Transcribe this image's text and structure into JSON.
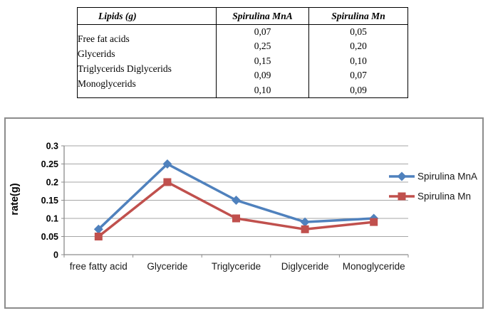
{
  "table": {
    "headers": [
      "Lipids (g)",
      "Spirulina MnA",
      "Spirulina Mn"
    ],
    "lipid_lines": [
      "Free fat acids",
      "Glycerids",
      "Triglycerids Diglycerids",
      "Monoglycerids"
    ],
    "spirulina_mna_values": [
      "0,07",
      "0,25",
      "0,15",
      "0,09",
      "0,10"
    ],
    "spirulina_mn_values": [
      "0,05",
      "0,20",
      "0,10",
      "0,07",
      "0,09"
    ]
  },
  "chart_data": {
    "type": "line",
    "categories": [
      "free fatty acid",
      "Glyceride",
      "Triglyceride",
      "Diglyceride",
      "Monoglyceride"
    ],
    "series": [
      {
        "name": "Spirulina MnA",
        "values": [
          0.07,
          0.25,
          0.15,
          0.09,
          0.1
        ],
        "color": "#4F81BD",
        "marker": "diamond"
      },
      {
        "name": "Spirulina Mn",
        "values": [
          0.05,
          0.2,
          0.1,
          0.07,
          0.09
        ],
        "color": "#C0504D",
        "marker": "square"
      }
    ],
    "title": "",
    "xlabel": "",
    "ylabel": "rate(g)",
    "ylim": [
      0,
      0.3
    ],
    "yticks": [
      0,
      0.05,
      0.1,
      0.15,
      0.2,
      0.25,
      0.3
    ],
    "ytick_labels": [
      "0",
      "0.05",
      "0.1",
      "0.15",
      "0.2",
      "0.25",
      "0.3"
    ],
    "grid": true,
    "legend_position": "right"
  }
}
